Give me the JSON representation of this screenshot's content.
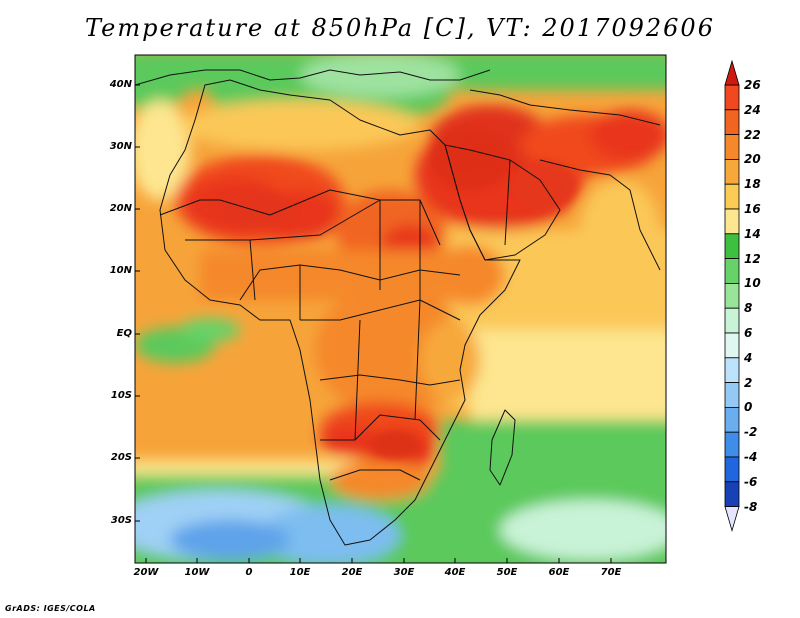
{
  "title": "Temperature at 850hPa [C], VT: 2017092606",
  "credit": "GrADS: IGES/COLA",
  "lat_labels": [
    "40N",
    "30N",
    "20N",
    "10N",
    "EQ",
    "10S",
    "20S",
    "30S"
  ],
  "lon_labels": [
    "20W",
    "10W",
    "0",
    "10E",
    "20E",
    "30E",
    "40E",
    "50E",
    "60E",
    "70E"
  ],
  "colorbar": {
    "labels": [
      "26",
      "24",
      "22",
      "20",
      "18",
      "16",
      "14",
      "12",
      "10",
      "8",
      "6",
      "4",
      "2",
      "0",
      "-2",
      "-4",
      "-6",
      "-8"
    ],
    "colors": [
      "#e8351a",
      "#f0491f",
      "#f16520",
      "#f5882a",
      "#f7a83a",
      "#fbcc55",
      "#fde68f",
      "#fff5bc",
      "#3fbf3f",
      "#67d267",
      "#98e498",
      "#c9f3d7",
      "#bde2fb",
      "#94c9f4",
      "#6aaeef",
      "#3e8de8",
      "#2066dc",
      "#1741b6",
      "#0b2487",
      "#6e0a0a"
    ],
    "overflow_top_color": "#cf1a12",
    "overflow_bottom_color": "#e5e5ff"
  },
  "colors": {
    "frame": "#000000",
    "sahara_hot": "#e8451c",
    "arabia_hot": "#e0371a",
    "sahel_warm": "#f2862a",
    "subtropical": "#f6a43a",
    "tropical_ocean": "#fbc859",
    "cool_ocean": "#fde68f",
    "mediterranean": "#5bc95b",
    "southern_cool": "#7dbdf0"
  }
}
